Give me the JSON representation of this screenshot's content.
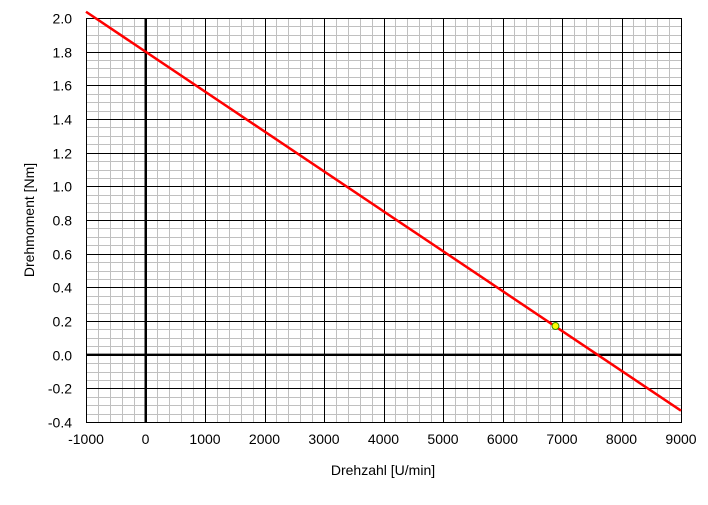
{
  "chart_data": {
    "type": "line",
    "title": "",
    "xlabel": "Drehzahl [U/min]",
    "ylabel": "Drehmoment [Nm]",
    "xlim": [
      -1000,
      9000
    ],
    "ylim": [
      -0.4,
      2.0
    ],
    "x_ticks": [
      -1000,
      0,
      1000,
      2000,
      3000,
      4000,
      5000,
      6000,
      7000,
      8000,
      9000
    ],
    "y_ticks": [
      "-0.4",
      "-0.2",
      "0.0",
      "0.2",
      "0.4",
      "0.6",
      "0.8",
      "1.0",
      "1.2",
      "1.4",
      "1.6",
      "1.8",
      "2.0"
    ],
    "x_minor_step": 200,
    "y_minor_step": 0.05,
    "grid": true,
    "series": [
      {
        "x": [
          -1000,
          9000
        ],
        "y": [
          2.037,
          -0.333
        ],
        "color": "#ff0000"
      }
    ],
    "points": [
      {
        "x": 6890,
        "y": 0.17,
        "color": "#ffff00",
        "edge": "#2e8b00"
      }
    ]
  }
}
